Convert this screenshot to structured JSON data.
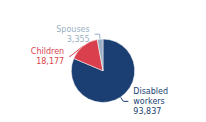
{
  "chart_data": {
    "type": "pie",
    "categories": [
      "Disabled workers",
      "Children",
      "Spouses"
    ],
    "values": [
      93837,
      18177,
      3355
    ],
    "value_labels": [
      "93,837",
      "18,177",
      "3,355"
    ],
    "colors": [
      "#1b3f72",
      "#d93f4c",
      "#9aafc4"
    ],
    "data_labels": true
  }
}
